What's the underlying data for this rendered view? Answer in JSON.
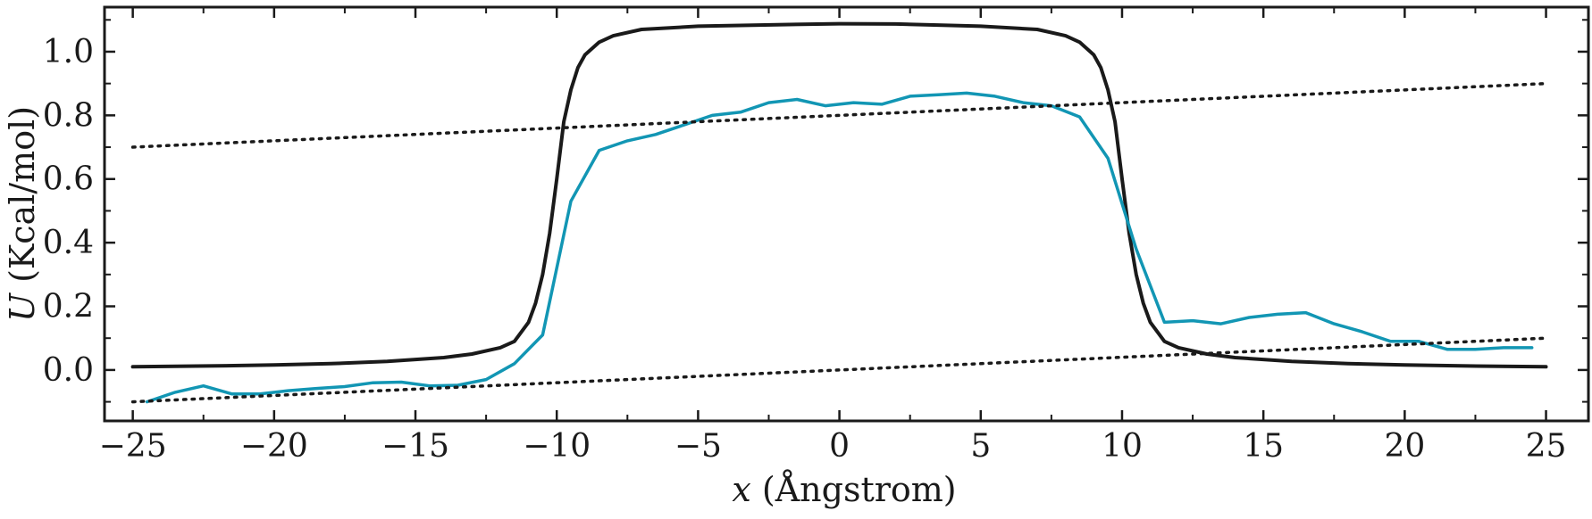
{
  "chart_data": {
    "type": "line",
    "xlabel": {
      "symbol": "x",
      "unit": " (Ångstrom)"
    },
    "ylabel": {
      "symbol": "U",
      "unit": " (Kcal/mol)"
    },
    "xlim": [
      -26,
      26.5
    ],
    "ylim": [
      -0.16,
      1.14
    ],
    "x_ticks": [
      -25,
      -20,
      -15,
      -10,
      -5,
      0,
      5,
      10,
      15,
      20,
      25
    ],
    "x_tick_labels": [
      "−25",
      "−20",
      "−15",
      "−10",
      "−5",
      "0",
      "5",
      "10",
      "15",
      "20",
      "25"
    ],
    "y_ticks": [
      0.0,
      0.2,
      0.4,
      0.6,
      0.8,
      1.0
    ],
    "y_tick_labels": [
      "0.0",
      "0.2",
      "0.4",
      "0.6",
      "0.8",
      "1.0"
    ],
    "grid": false,
    "legend": "none",
    "series": [
      {
        "style": "solid-black",
        "color": "#1a1a1a",
        "x": [
          -25,
          -22,
          -20,
          -18,
          -16,
          -14,
          -13,
          -12,
          -11.5,
          -11,
          -10.75,
          -10.5,
          -10.25,
          -10,
          -9.75,
          -9.5,
          -9.25,
          -9,
          -8.5,
          -8,
          -7,
          -6,
          -5,
          -2,
          0,
          2,
          5,
          7,
          8,
          8.5,
          9,
          9.25,
          9.5,
          9.75,
          10,
          10.25,
          10.5,
          10.75,
          11,
          11.5,
          12,
          13,
          14,
          16,
          18,
          20,
          22,
          25
        ],
        "y": [
          0.01,
          0.013,
          0.016,
          0.02,
          0.027,
          0.039,
          0.05,
          0.07,
          0.09,
          0.15,
          0.21,
          0.3,
          0.43,
          0.6,
          0.78,
          0.88,
          0.95,
          0.99,
          1.03,
          1.05,
          1.07,
          1.075,
          1.08,
          1.085,
          1.088,
          1.087,
          1.08,
          1.07,
          1.05,
          1.03,
          0.99,
          0.95,
          0.88,
          0.78,
          0.6,
          0.43,
          0.3,
          0.21,
          0.15,
          0.09,
          0.07,
          0.05,
          0.039,
          0.027,
          0.02,
          0.016,
          0.013,
          0.01
        ]
      },
      {
        "style": "solid-teal",
        "color": "#1296b4",
        "x": [
          -24.5,
          -23.5,
          -22.5,
          -21.5,
          -20.5,
          -19.5,
          -18.5,
          -17.5,
          -16.5,
          -15.5,
          -14.5,
          -13.5,
          -12.5,
          -11.5,
          -10.5,
          -9.5,
          -8.5,
          -7.5,
          -6.5,
          -5.5,
          -4.5,
          -3.5,
          -2.5,
          -1.5,
          -0.5,
          0.5,
          1.5,
          2.5,
          3.5,
          4.5,
          5.5,
          6.5,
          7.5,
          8.5,
          9.5,
          10.5,
          11.5,
          12.5,
          13.5,
          14.5,
          15.5,
          16.5,
          17.5,
          18.5,
          19.5,
          20.5,
          21.5,
          22.5,
          23.5,
          24.5
        ],
        "y": [
          -0.1,
          -0.07,
          -0.05,
          -0.075,
          -0.075,
          -0.065,
          -0.058,
          -0.052,
          -0.04,
          -0.038,
          -0.05,
          -0.048,
          -0.03,
          0.02,
          0.11,
          0.53,
          0.69,
          0.72,
          0.74,
          0.77,
          0.8,
          0.81,
          0.84,
          0.85,
          0.83,
          0.84,
          0.835,
          0.86,
          0.865,
          0.87,
          0.86,
          0.84,
          0.83,
          0.795,
          0.665,
          0.38,
          0.15,
          0.155,
          0.145,
          0.165,
          0.175,
          0.18,
          0.145,
          0.12,
          0.09,
          0.09,
          0.065,
          0.065,
          0.07,
          0.07
        ]
      },
      {
        "style": "dotted-black",
        "color": "#1a1a1a",
        "x": [
          -25,
          25
        ],
        "y": [
          0.7,
          0.9
        ]
      },
      {
        "style": "dotted-black",
        "color": "#1a1a1a",
        "x": [
          -25,
          25
        ],
        "y": [
          -0.1,
          0.1
        ]
      }
    ]
  }
}
